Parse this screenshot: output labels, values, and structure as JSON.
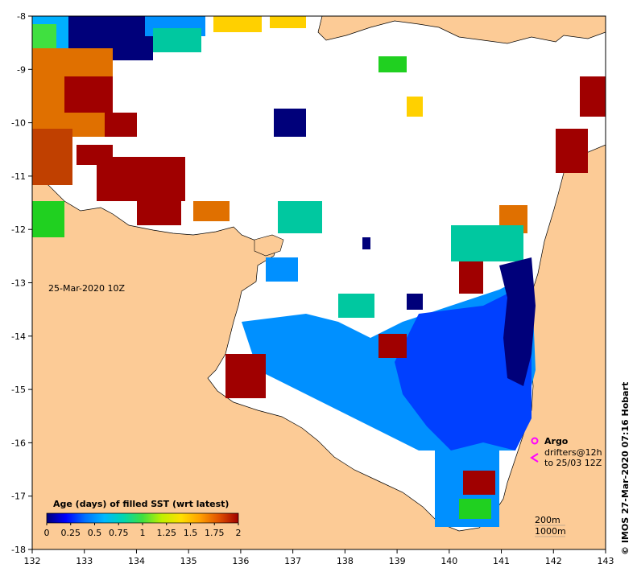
{
  "map": {
    "lon_ticks": [
      "132",
      "133",
      "134",
      "135",
      "136",
      "137",
      "138",
      "139",
      "140",
      "141",
      "142",
      "143"
    ],
    "lat_ticks": [
      "-8",
      "-9",
      "-10",
      "-11",
      "-12",
      "-13",
      "-14",
      "-15",
      "-16",
      "-17",
      "-18"
    ],
    "date_label": "25-Mar-2020 10Z",
    "legend": {
      "title": "Age (days) of filled SST (wrt latest)",
      "ticks": [
        "0",
        "0.25",
        "0.5",
        "0.75",
        "1",
        "1.25",
        "1.5",
        "1.75",
        "2"
      ],
      "colors": [
        "#00007a",
        "#0000ff",
        "#0070ff",
        "#00b8ff",
        "#00d6b0",
        "#40e040",
        "#c0f000",
        "#ffe000",
        "#ffa000",
        "#e05000",
        "#a00000"
      ]
    },
    "argo": {
      "label": "Argo",
      "color": "#ff00ff"
    },
    "drifters": {
      "line1": "drifters@12h",
      "line2": "to 25/03 12Z",
      "color": "#ff00ff"
    },
    "depth": {
      "line1": "200m",
      "line2": "1000m"
    },
    "credit": "© IMOS 27-Mar-2020 07:16 Hobart",
    "colors": {
      "land": "#fccb96",
      "ocean": "#ffffff",
      "dark_red": "#a00000",
      "orange": "#e07000",
      "navy": "#00007a",
      "blue": "#0040ff",
      "light_blue": "#0090ff",
      "cyan_blue": "#00b0ff",
      "teal": "#00c8a0",
      "green": "#20d020",
      "yellow": "#ffd000"
    }
  }
}
